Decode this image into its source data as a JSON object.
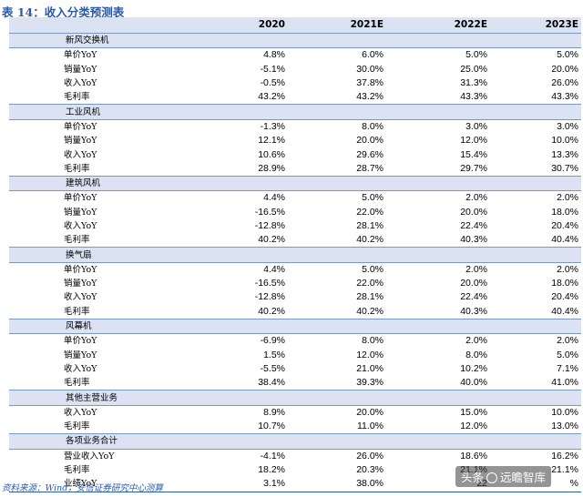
{
  "title": "表 14：收入分类预测表",
  "header": {
    "col0": "",
    "years": [
      "2020",
      "2021E",
      "2022E",
      "2023E"
    ]
  },
  "sections": [
    {
      "name": "新风交换机",
      "rows": [
        {
          "label": "单价YoY",
          "values": [
            "4.8%",
            "6.0%",
            "5.0%",
            "5.0%"
          ]
        },
        {
          "label": "销量YoY",
          "values": [
            "-5.1%",
            "30.0%",
            "25.0%",
            "20.0%"
          ]
        },
        {
          "label": "收入YoY",
          "values": [
            "-0.5%",
            "37.8%",
            "31.3%",
            "26.0%"
          ]
        },
        {
          "label": "毛利率",
          "values": [
            "43.2%",
            "43.2%",
            "43.3%",
            "43.3%"
          ]
        }
      ]
    },
    {
      "name": "工业风机",
      "rows": [
        {
          "label": "单价YoY",
          "values": [
            "-1.3%",
            "8.0%",
            "3.0%",
            "3.0%"
          ]
        },
        {
          "label": "销量YoY",
          "values": [
            "12.1%",
            "20.0%",
            "12.0%",
            "10.0%"
          ]
        },
        {
          "label": "收入YoY",
          "values": [
            "10.6%",
            "29.6%",
            "15.4%",
            "13.3%"
          ]
        },
        {
          "label": "毛利率",
          "values": [
            "28.9%",
            "28.7%",
            "29.7%",
            "30.7%"
          ]
        }
      ]
    },
    {
      "name": "建筑风机",
      "rows": [
        {
          "label": "单价YoY",
          "values": [
            "4.4%",
            "5.0%",
            "2.0%",
            "2.0%"
          ]
        },
        {
          "label": "销量YoY",
          "values": [
            "-16.5%",
            "22.0%",
            "20.0%",
            "18.0%"
          ]
        },
        {
          "label": "收入YoY",
          "values": [
            "-12.8%",
            "28.1%",
            "22.4%",
            "20.4%"
          ]
        },
        {
          "label": "毛利率",
          "values": [
            "40.2%",
            "40.2%",
            "40.3%",
            "40.4%"
          ]
        }
      ]
    },
    {
      "name": "换气扇",
      "rows": [
        {
          "label": "单价YoY",
          "values": [
            "4.4%",
            "5.0%",
            "2.0%",
            "2.0%"
          ]
        },
        {
          "label": "销量YoY",
          "values": [
            "-16.5%",
            "22.0%",
            "20.0%",
            "18.0%"
          ]
        },
        {
          "label": "收入YoY",
          "values": [
            "-12.8%",
            "28.1%",
            "22.4%",
            "20.4%"
          ]
        },
        {
          "label": "毛利率",
          "values": [
            "40.2%",
            "40.2%",
            "40.3%",
            "40.4%"
          ]
        }
      ]
    },
    {
      "name": "风幕机",
      "rows": [
        {
          "label": "单价YoY",
          "values": [
            "-6.9%",
            "8.0%",
            "2.0%",
            "2.0%"
          ]
        },
        {
          "label": "销量YoY",
          "values": [
            "1.5%",
            "12.0%",
            "8.0%",
            "5.0%"
          ]
        },
        {
          "label": "收入YoY",
          "values": [
            "-5.5%",
            "21.0%",
            "10.2%",
            "7.1%"
          ]
        },
        {
          "label": "毛利率",
          "values": [
            "38.4%",
            "39.3%",
            "40.0%",
            "41.0%"
          ]
        }
      ]
    },
    {
      "name": "其他主营业务",
      "rows": [
        {
          "label": "收入YoY",
          "values": [
            "8.9%",
            "20.0%",
            "15.0%",
            "10.0%"
          ]
        },
        {
          "label": "毛利率",
          "values": [
            "10.7%",
            "11.0%",
            "12.0%",
            "13.0%"
          ]
        }
      ]
    },
    {
      "name": "各项业务合计",
      "rows": [
        {
          "label": "营业收入YoY",
          "values": [
            "-4.1%",
            "26.0%",
            "18.6%",
            "16.2%"
          ]
        },
        {
          "label": "毛利率",
          "values": [
            "18.2%",
            "20.3%",
            "21.1%",
            "21.1%"
          ]
        },
        {
          "label": "业绩YoY",
          "values": [
            "3.1%",
            "38.0%",
            "22",
            "%"
          ]
        }
      ]
    }
  ],
  "source": "资料来源：Wind，安信证券研究中心测算",
  "watermark": {
    "text_prefix": "头条",
    "text_suffix": "远瞻智库",
    "icon": "logo-circle-icon"
  }
}
